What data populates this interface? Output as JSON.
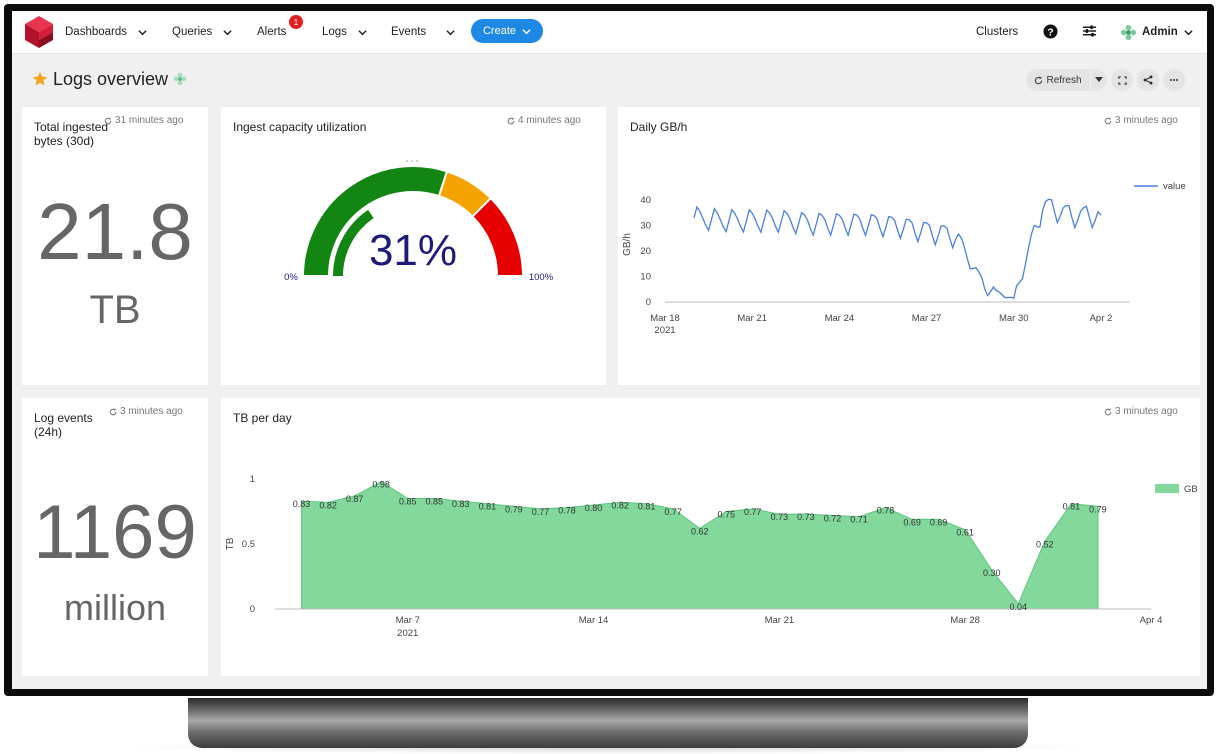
{
  "nav": {
    "items": [
      {
        "label": "Dashboards"
      },
      {
        "label": "Queries"
      },
      {
        "label": "Alerts",
        "badge": "1"
      },
      {
        "label": "Logs"
      },
      {
        "label": "Events"
      }
    ],
    "create_label": "Create",
    "clusters_label": "Clusters",
    "user_label": "Admin"
  },
  "page": {
    "title": "Logs overview",
    "refresh_label": "Refresh"
  },
  "panels": {
    "total_bytes": {
      "title": "Total ingested bytes (30d)",
      "timestamp": "31 minutes ago",
      "value": "21.8",
      "unit": "TB"
    },
    "gauge": {
      "title": "Ingest capacity utilization",
      "timestamp": "4 minutes ago",
      "value_label": "31%",
      "value": 31,
      "min_label": "0%",
      "max_label": "100%",
      "bands": [
        {
          "from": 0,
          "to": 60,
          "color": "#128512"
        },
        {
          "from": 60,
          "to": 75,
          "color": "#f5a300"
        },
        {
          "from": 75,
          "to": 100,
          "color": "#e60000"
        }
      ]
    },
    "daily_gbh": {
      "title": "Daily GB/h",
      "timestamp": "3 minutes ago"
    },
    "log_events": {
      "title": "Log events (24h)",
      "timestamp": "3 minutes ago",
      "value": "1169",
      "unit": "million"
    },
    "tb_per_day": {
      "title": "TB per day",
      "timestamp": "3 minutes ago"
    }
  },
  "chart_data": [
    {
      "type": "line",
      "title": "Daily GB/h",
      "ylabel": "GB/h",
      "xlabel": "",
      "ylim": [
        0,
        45
      ],
      "yticks": [
        0,
        10,
        20,
        30,
        40
      ],
      "xlim": [
        "2021-03-18",
        "2021-04-03"
      ],
      "xtick_labels": [
        "Mar 18",
        "Mar 21",
        "Mar 24",
        "Mar 27",
        "Mar 30",
        "Apr 2"
      ],
      "x_year_label": "2021",
      "grid": false,
      "legend": "top-right",
      "series": [
        {
          "name": "value",
          "color": "#4a7fe0",
          "x": [
            "2021-03-19",
            "2021-03-20",
            "2021-03-21",
            "2021-03-22",
            "2021-03-23",
            "2021-03-24",
            "2021-03-25",
            "2021-03-26",
            "2021-03-27",
            "2021-03-28",
            "2021-03-29",
            "2021-03-30",
            "2021-03-31",
            "2021-04-01",
            "2021-04-02"
          ],
          "y": [
            33,
            32,
            32,
            32,
            31,
            31,
            31,
            30,
            28,
            26,
            6,
            1,
            38,
            34,
            34
          ]
        }
      ]
    },
    {
      "type": "area",
      "title": "TB per day",
      "ylabel": "TB",
      "xlabel": "",
      "ylim": [
        0,
        1
      ],
      "yticks": [
        0,
        0.5,
        1
      ],
      "xlim": [
        "2021-03-02",
        "2021-04-04"
      ],
      "xtick_labels": [
        "Mar 7",
        "Mar 14",
        "Mar 21",
        "Mar 28",
        "Apr 4"
      ],
      "x_year_label": "2021",
      "grid": false,
      "legend": "top-right",
      "series": [
        {
          "name": "GB",
          "color": "#83d99b",
          "x": [
            "2021-03-03",
            "2021-03-04",
            "2021-03-05",
            "2021-03-06",
            "2021-03-07",
            "2021-03-08",
            "2021-03-09",
            "2021-03-10",
            "2021-03-11",
            "2021-03-12",
            "2021-03-13",
            "2021-03-14",
            "2021-03-15",
            "2021-03-16",
            "2021-03-17",
            "2021-03-18",
            "2021-03-19",
            "2021-03-20",
            "2021-03-21",
            "2021-03-22",
            "2021-03-23",
            "2021-03-24",
            "2021-03-25",
            "2021-03-26",
            "2021-03-27",
            "2021-03-28",
            "2021-03-29",
            "2021-03-30",
            "2021-03-31",
            "2021-04-01",
            "2021-04-02"
          ],
          "values": [
            0.83,
            0.82,
            0.87,
            0.98,
            0.85,
            0.85,
            0.83,
            0.81,
            0.79,
            0.77,
            0.78,
            0.8,
            0.82,
            0.81,
            0.77,
            0.62,
            0.75,
            0.77,
            0.73,
            0.73,
            0.72,
            0.71,
            0.78,
            0.69,
            0.69,
            0.61,
            0.3,
            0.04,
            0.52,
            0.81,
            0.79
          ]
        }
      ]
    }
  ]
}
